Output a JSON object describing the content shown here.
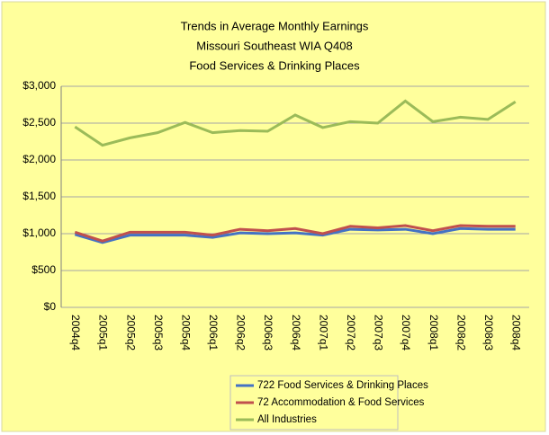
{
  "chart_data": {
    "type": "line",
    "title": [
      "Trends in Average Monthly Earnings",
      "Missouri Southeast WIA Q408",
      "Food Services & Drinking Places"
    ],
    "categories": [
      "2004q4",
      "2005q1",
      "2005q2",
      "2005q3",
      "2005q4",
      "2006q1",
      "2006q2",
      "2006q3",
      "2006q4",
      "2007q1",
      "2007q2",
      "2007q3",
      "2007q4",
      "2008q1",
      "2008q2",
      "2008q3",
      "2008q4"
    ],
    "series": [
      {
        "name": "722 Food Services & Drinking Places",
        "color": "#4472c4",
        "values": [
          990,
          880,
          980,
          980,
          980,
          950,
          1010,
          1000,
          1010,
          980,
          1060,
          1050,
          1060,
          1000,
          1070,
          1060,
          1060
        ]
      },
      {
        "name": "72 Accommodation & Food Services",
        "color": "#c0504d",
        "values": [
          1020,
          900,
          1020,
          1020,
          1020,
          980,
          1060,
          1040,
          1070,
          1000,
          1100,
          1080,
          1110,
          1040,
          1110,
          1100,
          1100
        ]
      },
      {
        "name": "All Industries",
        "color": "#9bbb59",
        "values": [
          2450,
          2200,
          2300,
          2370,
          2510,
          2370,
          2400,
          2390,
          2610,
          2440,
          2520,
          2500,
          2800,
          2520,
          2580,
          2550,
          2790
        ]
      }
    ],
    "ylim": [
      0,
      3000
    ],
    "yticks": [
      {
        "value": 0,
        "label": "$0"
      },
      {
        "value": 500,
        "label": "$500"
      },
      {
        "value": 1000,
        "label": "$1,000"
      },
      {
        "value": 1500,
        "label": "$1,500"
      },
      {
        "value": 2000,
        "label": "$2,000"
      },
      {
        "value": 2500,
        "label": "$2,500"
      },
      {
        "value": 3000,
        "label": "$3,000"
      }
    ],
    "grid": true,
    "legend": "bottom"
  }
}
